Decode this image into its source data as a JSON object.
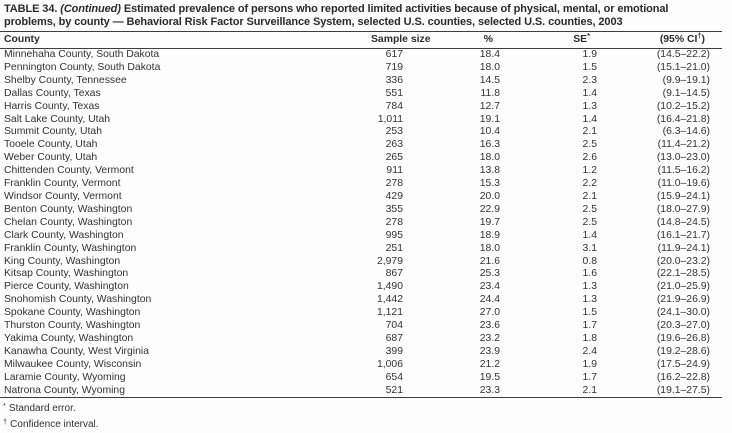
{
  "title": {
    "label": "TABLE 34.",
    "continued": "(Continued)",
    "line1_rest": "Estimated prevalence of persons who reported limited activities because of physical, mental, or emotional",
    "line2": "problems, by county — Behavioral Risk Factor Surveillance System, selected U.S. counties, selected U.S. counties, 2003"
  },
  "table": {
    "header": {
      "county": "County",
      "sample_size": "Sample size",
      "percent": "%",
      "se_main": "SE",
      "se_sup": "*",
      "ci_pre": "(95% CI",
      "ci_sup": "†",
      "ci_post": ")"
    },
    "rows": [
      {
        "county": "Minnehaha County, South Dakota",
        "n": "617",
        "pct": "18.4",
        "se": "1.9",
        "ci": "(14.5–22.2)"
      },
      {
        "county": "Pennington County, South Dakota",
        "n": "719",
        "pct": "18.0",
        "se": "1.5",
        "ci": "(15.1–21.0)"
      },
      {
        "county": "Shelby County, Tennessee",
        "n": "336",
        "pct": "14.5",
        "se": "2.3",
        "ci": "(9.9–19.1)"
      },
      {
        "county": "Dallas County, Texas",
        "n": "551",
        "pct": "11.8",
        "se": "1.4",
        "ci": "(9.1–14.5)"
      },
      {
        "county": "Harris County, Texas",
        "n": "784",
        "pct": "12.7",
        "se": "1.3",
        "ci": "(10.2–15.2)"
      },
      {
        "county": "Salt Lake County, Utah",
        "n": "1,011",
        "pct": "19.1",
        "se": "1.4",
        "ci": "(16.4–21.8)"
      },
      {
        "county": "Summit County, Utah",
        "n": "253",
        "pct": "10.4",
        "se": "2.1",
        "ci": "(6.3–14.6)"
      },
      {
        "county": "Tooele County, Utah",
        "n": "263",
        "pct": "16.3",
        "se": "2.5",
        "ci": "(11.4–21.2)"
      },
      {
        "county": "Weber County, Utah",
        "n": "265",
        "pct": "18.0",
        "se": "2.6",
        "ci": "(13.0–23.0)"
      },
      {
        "county": "Chittenden County, Vermont",
        "n": "911",
        "pct": "13.8",
        "se": "1.2",
        "ci": "(11.5–16.2)"
      },
      {
        "county": "Franklin County, Vermont",
        "n": "278",
        "pct": "15.3",
        "se": "2.2",
        "ci": "(11.0–19.6)"
      },
      {
        "county": "Windsor County, Vermont",
        "n": "429",
        "pct": "20.0",
        "se": "2.1",
        "ci": "(15.9–24.1)"
      },
      {
        "county": "Benton County, Washington",
        "n": "355",
        "pct": "22.9",
        "se": "2.5",
        "ci": "(18.0–27.9)"
      },
      {
        "county": "Chelan County, Washington",
        "n": "278",
        "pct": "19.7",
        "se": "2.5",
        "ci": "(14.8–24.5)"
      },
      {
        "county": "Clark County, Washington",
        "n": "995",
        "pct": "18.9",
        "se": "1.4",
        "ci": "(16.1–21.7)"
      },
      {
        "county": "Franklin County, Washington",
        "n": "251",
        "pct": "18.0",
        "se": "3.1",
        "ci": "(11.9–24.1)"
      },
      {
        "county": "King County, Washington",
        "n": "2,979",
        "pct": "21.6",
        "se": "0.8",
        "ci": "(20.0–23.2)"
      },
      {
        "county": "Kitsap County, Washington",
        "n": "867",
        "pct": "25.3",
        "se": "1.6",
        "ci": "(22.1–28.5)"
      },
      {
        "county": "Pierce County, Washington",
        "n": "1,490",
        "pct": "23.4",
        "se": "1.3",
        "ci": "(21.0–25.9)"
      },
      {
        "county": "Snohomish County, Washington",
        "n": "1,442",
        "pct": "24.4",
        "se": "1.3",
        "ci": "(21.9–26.9)"
      },
      {
        "county": "Spokane County, Washington",
        "n": "1,121",
        "pct": "27.0",
        "se": "1.5",
        "ci": "(24.1–30.0)"
      },
      {
        "county": "Thurston County, Washington",
        "n": "704",
        "pct": "23.6",
        "se": "1.7",
        "ci": "(20.3–27.0)"
      },
      {
        "county": "Yakima County, Washington",
        "n": "687",
        "pct": "23.2",
        "se": "1.8",
        "ci": "(19.6–26.8)"
      },
      {
        "county": "Kanawha County, West Virginia",
        "n": "399",
        "pct": "23.9",
        "se": "2.4",
        "ci": "(19.2–28.6)"
      },
      {
        "county": "Milwaukee County, Wisconsin",
        "n": "1,006",
        "pct": "21.2",
        "se": "1.9",
        "ci": "(17.5–24.9)"
      },
      {
        "county": "Laramie County, Wyoming",
        "n": "654",
        "pct": "19.5",
        "se": "1.7",
        "ci": "(16.2–22.8)"
      },
      {
        "county": "Natrona County, Wyoming",
        "n": "521",
        "pct": "23.3",
        "se": "2.1",
        "ci": "(19.1–27.5)"
      }
    ]
  },
  "footnotes": [
    {
      "sup": "*",
      "text": "Standard error."
    },
    {
      "sup": "†",
      "text": "Confidence interval."
    }
  ]
}
